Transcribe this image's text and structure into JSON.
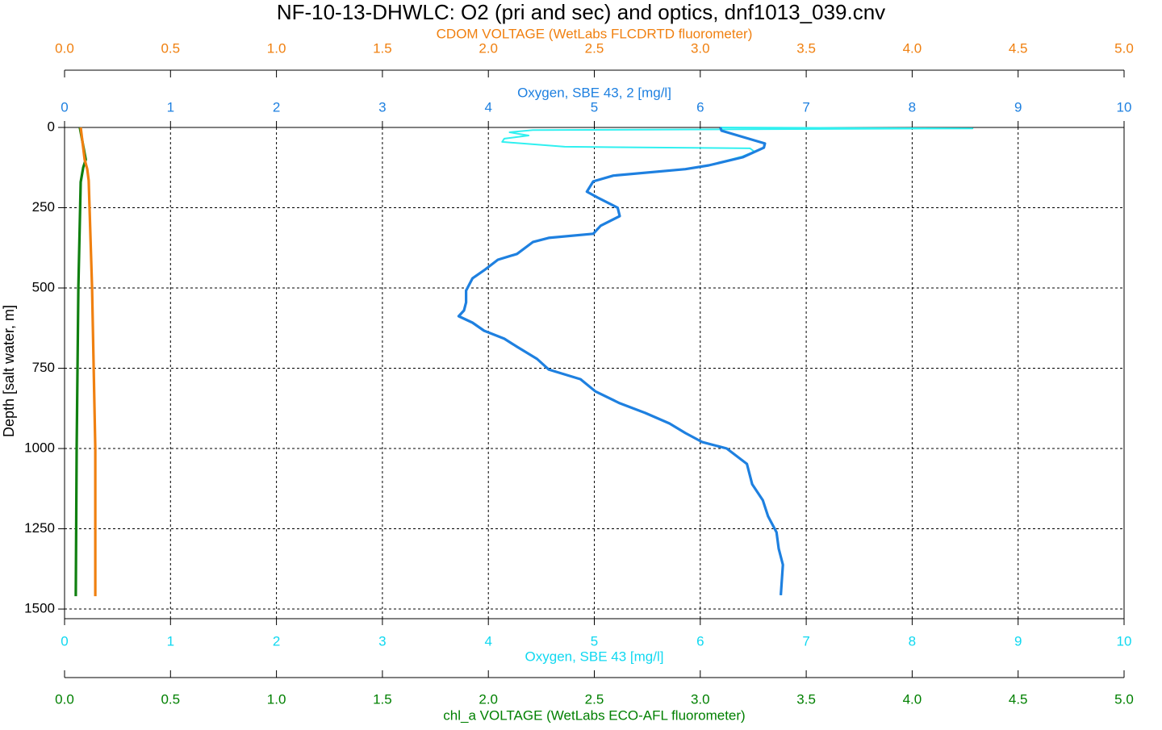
{
  "chart_data": {
    "type": "line",
    "title": "NF-10-13-DHWLC: O2 (pri and sec) and optics, dnf1013_039.cnv",
    "grid": true,
    "depth_axis": {
      "label": "Depth [salt water, m]",
      "lim": [
        0,
        1530
      ],
      "reversed": true,
      "ticks": [
        0,
        250,
        500,
        750,
        1000,
        1250,
        1500
      ]
    },
    "axes": {
      "top_outer": {
        "label": "CDOM VOLTAGE (WetLabs FLCDRTD fluorometer)",
        "color": "#f08010",
        "lim": [
          0,
          5
        ],
        "ticks": [
          {
            "value": 0,
            "label": "0.0"
          },
          0.5,
          {
            "value": 1,
            "label": "1.0"
          },
          1.5,
          {
            "value": 2,
            "label": "2.0"
          },
          2.5,
          {
            "value": 3,
            "label": "3.0"
          },
          3.5,
          {
            "value": 4,
            "label": "4.0"
          },
          4.5,
          {
            "value": 5,
            "label": "5.0"
          }
        ]
      },
      "top_inner": {
        "label": "Oxygen, SBE 43, 2 [mg/l]",
        "color": "#1e80e0",
        "lim": [
          0,
          10
        ],
        "ticks": [
          0,
          1,
          2,
          3,
          4,
          5,
          6,
          7,
          8,
          9,
          10
        ]
      },
      "bottom_inner": {
        "label": "Oxygen, SBE 43 [mg/l]",
        "color": "#10d8f0",
        "lim": [
          0,
          10
        ],
        "ticks": [
          0,
          1,
          2,
          3,
          4,
          5,
          6,
          7,
          8,
          9,
          10
        ]
      },
      "bottom_outer": {
        "label": "chl_a VOLTAGE (WetLabs ECO-AFL fluorometer)",
        "color": "#008000",
        "lim": [
          0,
          5
        ],
        "ticks": [
          {
            "value": 0,
            "label": "0.0"
          },
          0.5,
          {
            "value": 1,
            "label": "1.0"
          },
          1.5,
          {
            "value": 2,
            "label": "2.0"
          },
          2.5,
          {
            "value": 3,
            "label": "3.0"
          },
          3.5,
          {
            "value": 4,
            "label": "4.0"
          },
          4.5,
          {
            "value": 5,
            "label": "5.0"
          }
        ]
      }
    },
    "series": [
      {
        "name": "Oxygen, SBE 43",
        "axis": "bottom_inner",
        "color": "#30f0f0",
        "depth": [
          0,
          3,
          8,
          15,
          25,
          35,
          45,
          60,
          65,
          75,
          90,
          118,
          130,
          150,
          168,
          200,
          218,
          250,
          276,
          306,
          331,
          344,
          357,
          394,
          412,
          445,
          470,
          508,
          545,
          570,
          588,
          608,
          633,
          658,
          683,
          721,
          754,
          784,
          822,
          859,
          889,
          922,
          952,
          980,
          1000,
          1048,
          1111,
          1161,
          1211,
          1261,
          1312,
          1362,
          1457
        ],
        "values": [
          6.19,
          8.57,
          4.42,
          4.2,
          4.38,
          4.15,
          4.13,
          4.72,
          6.47,
          6.51,
          6.4,
          6.08,
          5.86,
          5.18,
          4.99,
          4.93,
          5.03,
          5.22,
          5.24,
          5.06,
          4.99,
          4.57,
          4.42,
          4.27,
          4.09,
          3.96,
          3.85,
          3.79,
          3.79,
          3.77,
          3.72,
          3.85,
          3.96,
          4.15,
          4.27,
          4.46,
          4.57,
          4.87,
          5.01,
          5.24,
          5.48,
          5.71,
          5.86,
          6.02,
          6.25,
          6.44,
          6.49,
          6.59,
          6.64,
          6.72,
          6.74,
          6.78,
          6.76
        ]
      },
      {
        "name": "Oxygen, SBE 43, 2",
        "axis": "top_inner",
        "color": "#1e80e0",
        "depth": [
          0,
          10,
          50,
          63,
          93,
          118,
          130,
          150,
          168,
          200,
          218,
          250,
          276,
          306,
          331,
          344,
          357,
          394,
          412,
          445,
          470,
          508,
          545,
          570,
          588,
          608,
          633,
          658,
          683,
          721,
          754,
          784,
          822,
          859,
          889,
          922,
          952,
          980,
          1000,
          1048,
          1111,
          1161,
          1211,
          1261,
          1312,
          1362,
          1457
        ],
        "values": [
          6.19,
          6.2,
          6.61,
          6.6,
          6.4,
          6.08,
          5.86,
          5.18,
          4.99,
          4.93,
          5.03,
          5.22,
          5.24,
          5.06,
          4.99,
          4.57,
          4.42,
          4.27,
          4.09,
          3.96,
          3.85,
          3.79,
          3.79,
          3.77,
          3.72,
          3.85,
          3.96,
          4.15,
          4.27,
          4.46,
          4.57,
          4.87,
          5.01,
          5.24,
          5.48,
          5.71,
          5.86,
          6.02,
          6.25,
          6.44,
          6.49,
          6.59,
          6.64,
          6.72,
          6.74,
          6.78,
          6.76
        ]
      },
      {
        "name": "chl_a VOLTAGE",
        "axis": "bottom_outer",
        "color": "#108010",
        "depth": [
          0,
          100,
          125,
          170,
          500,
          1000,
          1460
        ],
        "values": [
          0.072,
          0.1,
          0.088,
          0.076,
          0.065,
          0.057,
          0.053
        ]
      },
      {
        "name": "CDOM VOLTAGE",
        "axis": "top_outer",
        "color": "#f08010",
        "depth": [
          0,
          100,
          130,
          165,
          500,
          1000,
          1460
        ],
        "values": [
          0.076,
          0.095,
          0.107,
          0.114,
          0.13,
          0.145,
          0.145
        ]
      }
    ]
  }
}
